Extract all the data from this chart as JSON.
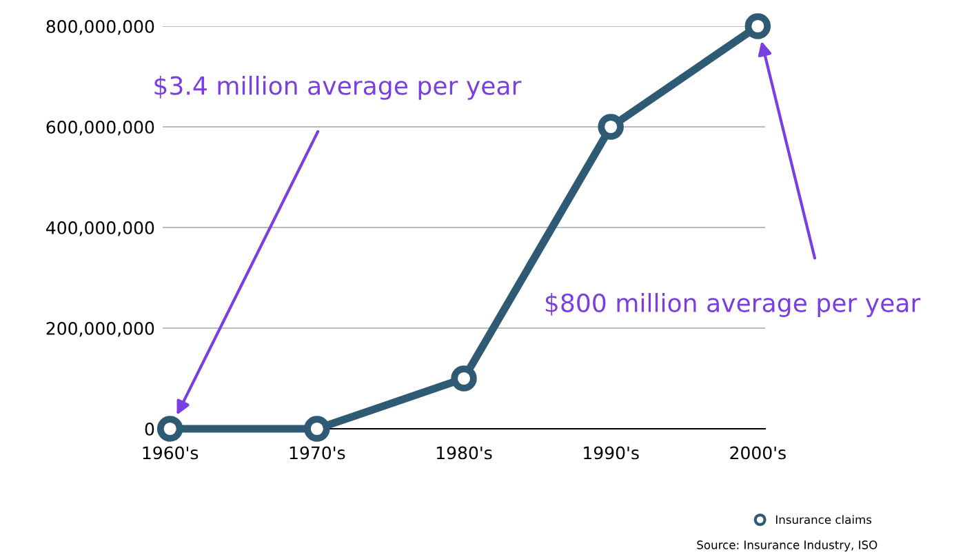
{
  "chart_data": {
    "type": "line",
    "categories": [
      "1960's",
      "1970's",
      "1980's",
      "1990's",
      "2000's"
    ],
    "series": [
      {
        "name": "Insurance claims",
        "color": "#2e5a73",
        "values": [
          0,
          0,
          100000000,
          600000000,
          800000000
        ]
      }
    ],
    "ylim": [
      0,
      800000000
    ],
    "yticks": [
      {
        "value": 0,
        "label": "0"
      },
      {
        "value": 200000000,
        "label": "200,000,000"
      },
      {
        "value": 400000000,
        "label": "400,000,000"
      },
      {
        "value": 600000000,
        "label": "600,000,000"
      },
      {
        "value": 800000000,
        "label": "800,000,000"
      }
    ],
    "grid": "y",
    "legend": "bottom right",
    "marker": "circle",
    "line_style": "solid",
    "annotations": [
      "$3.4 million average per year",
      "$800 million average per year",
      "Source: Insurance Industry, ISO"
    ]
  }
}
